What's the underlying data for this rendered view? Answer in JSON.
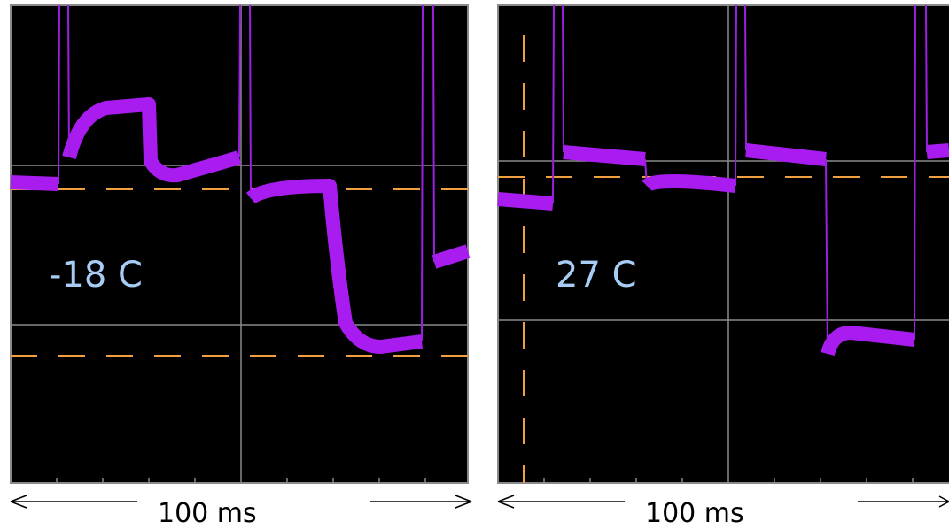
{
  "panels": [
    {
      "label": "-18 C",
      "span": "100 ms"
    },
    {
      "label": "27 C",
      "span": "100 ms"
    }
  ]
}
